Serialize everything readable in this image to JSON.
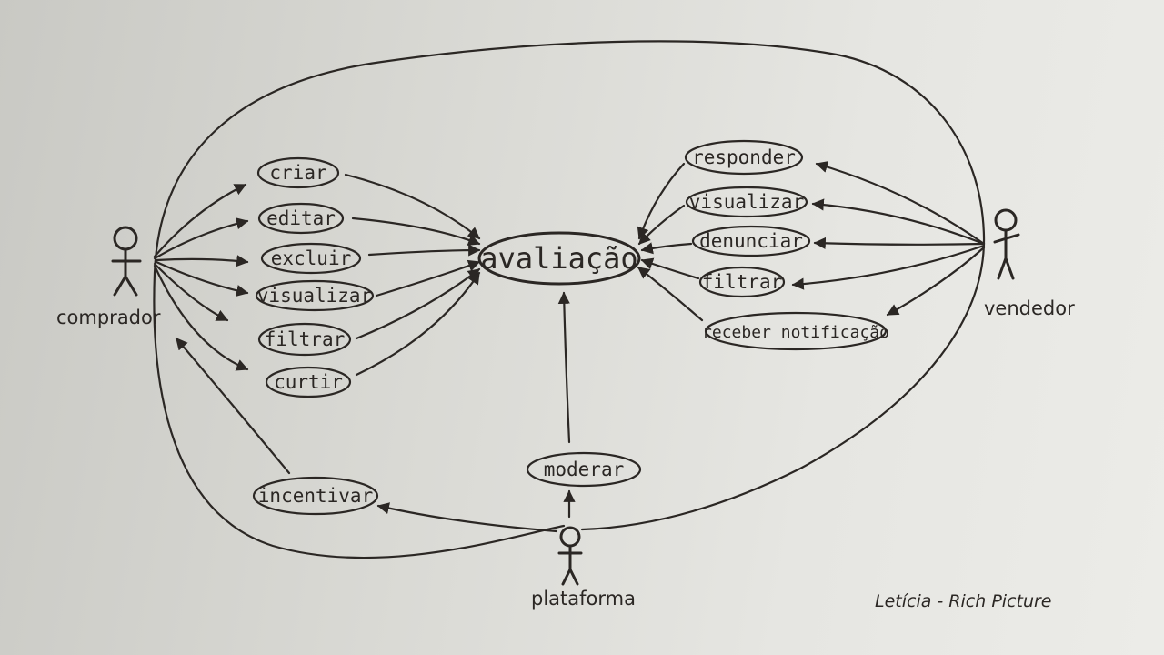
{
  "diagram": {
    "center_node": "avaliação",
    "actors": {
      "buyer": "comprador",
      "seller": "vendedor",
      "platform": "plataforma"
    },
    "buyer_actions": [
      "criar",
      "editar",
      "excluir",
      "visualizar",
      "filtrar",
      "curtir"
    ],
    "seller_actions": [
      "responder",
      "visualizar",
      "denunciar",
      "filtrar",
      "receber notificação"
    ],
    "platform_actions": [
      "moderar",
      "incentivar"
    ],
    "signature": "Letícia - Rich Picture"
  }
}
